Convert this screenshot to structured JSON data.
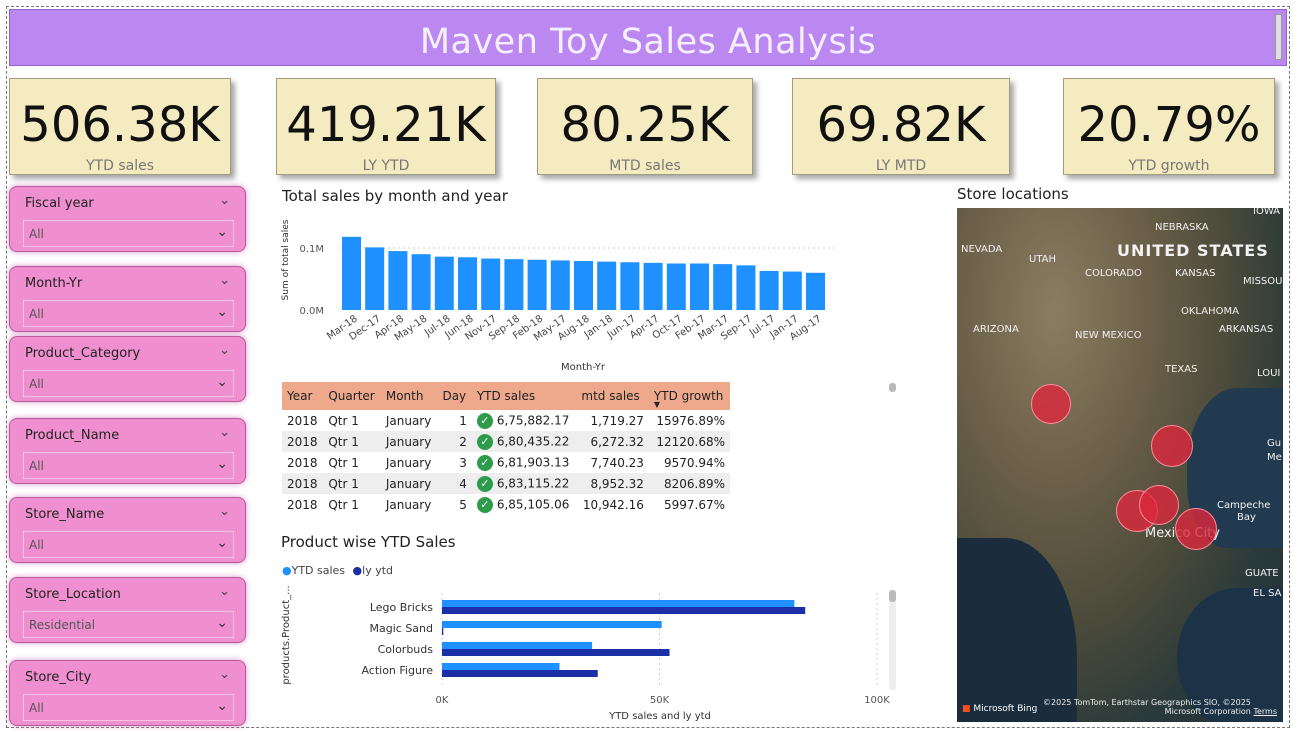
{
  "header": {
    "title": "Maven Toy Sales Analysis"
  },
  "kpis": [
    {
      "value": "506.38K",
      "label": "YTD sales"
    },
    {
      "value": "419.21K",
      "label": "LY YTD"
    },
    {
      "value": "80.25K",
      "label": "MTD sales"
    },
    {
      "value": "69.82K",
      "label": "LY MTD"
    },
    {
      "value": "20.79%",
      "label": "YTD growth"
    }
  ],
  "slicers": [
    {
      "title": "Fiscal year",
      "value": "All"
    },
    {
      "title": "Month-Yr",
      "value": "All"
    },
    {
      "title": "Product_Category",
      "value": "All"
    },
    {
      "title": "Product_Name",
      "value": "All"
    },
    {
      "title": "Store_Name",
      "value": "All"
    },
    {
      "title": "Store_Location",
      "value": "Residential"
    },
    {
      "title": "Store_City",
      "value": "All"
    }
  ],
  "monthly_chart": {
    "title": "Total sales by month and year",
    "xlabel": "Month-Yr",
    "ylabel": "Sum of total sales",
    "yticks": [
      "0.1M",
      "0.0M"
    ]
  },
  "table": {
    "headers": [
      "Year",
      "Quarter",
      "Month",
      "Day",
      "YTD sales",
      "mtd sales",
      "YTD growth"
    ],
    "rows": [
      [
        "2018",
        "Qtr 1",
        "January",
        "1",
        "6,75,882.17",
        "1,719.27",
        "15976.89%"
      ],
      [
        "2018",
        "Qtr 1",
        "January",
        "2",
        "6,80,435.22",
        "6,272.32",
        "12120.68%"
      ],
      [
        "2018",
        "Qtr 1",
        "January",
        "3",
        "6,81,903.13",
        "7,740.23",
        "9570.94%"
      ],
      [
        "2018",
        "Qtr 1",
        "January",
        "4",
        "6,83,115.22",
        "8,952.32",
        "8206.89%"
      ],
      [
        "2018",
        "Qtr 1",
        "January",
        "5",
        "6,85,105.06",
        "10,942.16",
        "5997.67%"
      ]
    ]
  },
  "product_chart": {
    "title": "Product wise YTD Sales",
    "legend": [
      "YTD sales",
      "ly ytd"
    ],
    "ylabel": "products.Product_...",
    "xlabel": "YTD sales and ly ytd",
    "xticks": [
      "0K",
      "50K",
      "100K"
    ]
  },
  "map": {
    "title": "Store locations",
    "country_label": "UNITED STATES",
    "state_labels": [
      "NEBRASKA",
      "IOWA",
      "NEVADA",
      "UTAH",
      "COLORADO",
      "KANSAS",
      "MISSOU",
      "OKLAHOMA",
      "ARIZONA",
      "NEW MEXICO",
      "ARKANSAS",
      "TEXAS",
      "LOUI",
      "Gu",
      "Me",
      "Campeche",
      "Bay",
      "GUATE",
      "EL SA"
    ],
    "city_label": "Mexico City",
    "credit": "©2025 TomTom, Earthstar Geographics SIO, ©2025 Microsoft Corporation",
    "terms": "Terms",
    "bing": "Microsoft Bing"
  },
  "colors": {
    "header_bg": "#bb87f0",
    "kpi_bg": "#f4ebc1",
    "slicer_bg": "#ef8fd0",
    "bar": "#1e90ff",
    "bar_dark": "#1b2fa6",
    "table_header": "#eea98d"
  },
  "chart_data": [
    {
      "type": "bar",
      "title": "Total sales by month and year",
      "xlabel": "Month-Yr",
      "ylabel": "Sum of total sales",
      "ylim": [
        0,
        0.13
      ],
      "categories": [
        "Mar-18",
        "Dec-17",
        "Apr-18",
        "May-18",
        "Jul-18",
        "Jun-18",
        "Nov-17",
        "Sep-18",
        "Feb-18",
        "May-17",
        "Aug-18",
        "Jan-18",
        "Jun-17",
        "Apr-17",
        "Oct-17",
        "Feb-17",
        "Mar-17",
        "Sep-17",
        "Jul-17",
        "Jan-17",
        "Aug-17"
      ],
      "x_tick_labels": [
        "Mar-18",
        "Dec-17",
        "Apr-18",
        "May-18",
        "Jul-18",
        "Jun-18",
        "Nov-17",
        "Sep-18",
        "Feb-18",
        "May-17",
        "Aug-18",
        "Jan-18",
        "Jun-17",
        "Apr-17",
        "Oct-17",
        "Feb-17",
        "Mar-17",
        "Sep-17",
        "Jul-17",
        "Jan-17",
        "Aug-17"
      ],
      "values": [
        0.118,
        0.101,
        0.095,
        0.09,
        0.086,
        0.085,
        0.083,
        0.082,
        0.081,
        0.08,
        0.079,
        0.078,
        0.077,
        0.076,
        0.075,
        0.075,
        0.074,
        0.072,
        0.063,
        0.062,
        0.06
      ],
      "legend": "none"
    },
    {
      "type": "bar",
      "orientation": "horizontal",
      "title": "Product wise YTD Sales",
      "xlabel": "YTD sales and ly ytd",
      "ylabel": "products.Product_...",
      "xlim": [
        0,
        100000
      ],
      "categories": [
        "Lego Bricks",
        "Magic Sand",
        "Colorbuds",
        "Action Figure"
      ],
      "series": [
        {
          "name": "YTD sales",
          "values": [
            81000,
            50500,
            34500,
            27000
          ]
        },
        {
          "name": "ly ytd",
          "values": [
            83500,
            300,
            52300,
            35800
          ]
        }
      ],
      "legend": "top-left"
    }
  ]
}
